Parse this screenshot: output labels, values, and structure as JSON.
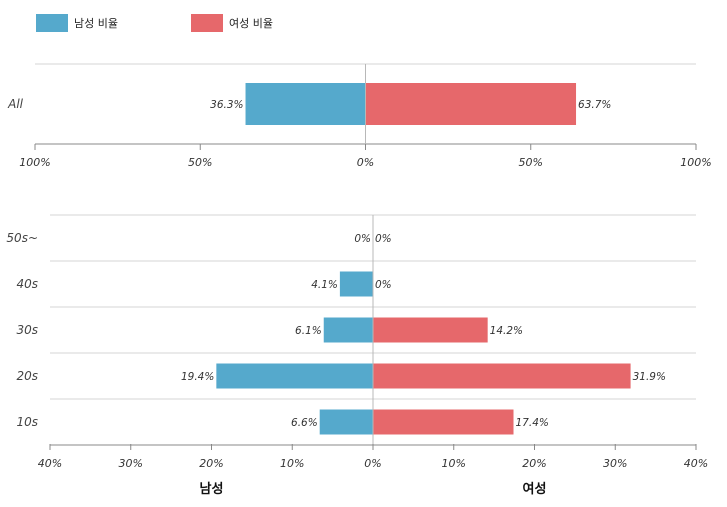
{
  "colors": {
    "male": "#55a9cc",
    "female": "#e6686b",
    "grid": "#d4d4d4",
    "axis": "#888888"
  },
  "legend": {
    "male_label": "남성 비율",
    "female_label": "여성 비율"
  },
  "chart_data": [
    {
      "type": "bar",
      "orientation": "horizontal-diverging",
      "categories": [
        "All"
      ],
      "series": [
        {
          "name": "남성 비율",
          "values": [
            36.3
          ]
        },
        {
          "name": "여성 비율",
          "values": [
            63.7
          ]
        }
      ],
      "value_labels": {
        "male": [
          "36.3%"
        ],
        "female": [
          "63.7%"
        ]
      },
      "xlim": [
        -100,
        100
      ],
      "ticks": [
        "100%",
        "50%",
        "0%",
        "50%",
        "100%"
      ],
      "grid": true
    },
    {
      "type": "bar",
      "orientation": "horizontal-diverging",
      "categories": [
        "50s~",
        "40s",
        "30s",
        "20s",
        "10s"
      ],
      "series": [
        {
          "name": "남성",
          "values": [
            0,
            4.1,
            6.1,
            19.4,
            6.6
          ]
        },
        {
          "name": "여성",
          "values": [
            0,
            0,
            14.2,
            31.9,
            17.4
          ]
        }
      ],
      "value_labels": {
        "male": [
          "0%",
          "4.1%",
          "6.1%",
          "19.4%",
          "6.6%"
        ],
        "female": [
          "0%",
          "0%",
          "14.2%",
          "31.9%",
          "17.4%"
        ]
      },
      "xlim": [
        -40,
        40
      ],
      "ticks": [
        "40%",
        "30%",
        "20%",
        "10%",
        "0%",
        "10%",
        "20%",
        "30%",
        "40%"
      ],
      "xlabel_left": "남성",
      "xlabel_right": "여성",
      "grid": true
    }
  ]
}
